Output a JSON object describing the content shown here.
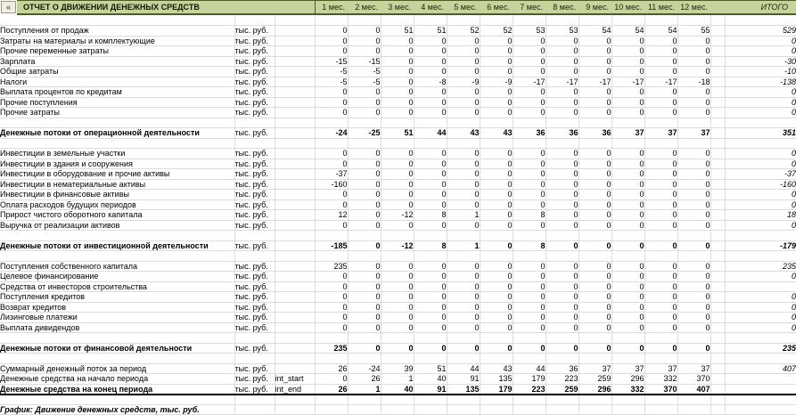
{
  "window": {
    "collapse_button": "«"
  },
  "header": {
    "title": "ОТЧЕТ О ДВИЖЕНИИ ДЕНЕЖНЫХ СРЕДСТВ",
    "month_labels": [
      "1 мес.",
      "2 мес.",
      "3 мес.",
      "4 мес.",
      "5 мес.",
      "6 мес.",
      "7 мес.",
      "8 мес.",
      "9 мес.",
      "10 мес.",
      "11 мес.",
      "12 мес."
    ],
    "total_label": "ИТОГО"
  },
  "colors": {
    "header_bg": "#c6d49b",
    "header_border": "#4c5c26",
    "grid_line": "#dcdcdc"
  },
  "rows": [
    {
      "type": "blank"
    },
    {
      "label": "Поступления от продаж",
      "units": "тыс. руб.",
      "var": "",
      "values": [
        0,
        0,
        51,
        51,
        52,
        52,
        53,
        53,
        54,
        54,
        54,
        55
      ],
      "total": "529"
    },
    {
      "label": "Затраты на материалы и комплектующие",
      "units": "тыс. руб.",
      "var": "",
      "values": [
        0,
        0,
        0,
        0,
        0,
        0,
        0,
        0,
        0,
        0,
        0,
        0
      ],
      "total": "0"
    },
    {
      "label": "Прочие переменные затраты",
      "units": "тыс. руб.",
      "var": "",
      "values": [
        0,
        0,
        0,
        0,
        0,
        0,
        0,
        0,
        0,
        0,
        0,
        0
      ],
      "total": "0"
    },
    {
      "label": "Зарплата",
      "units": "тыс. руб.",
      "var": "",
      "values": [
        -15,
        -15,
        0,
        0,
        0,
        0,
        0,
        0,
        0,
        0,
        0,
        0
      ],
      "total": "-30"
    },
    {
      "label": "Общие затраты",
      "units": "тыс. руб.",
      "var": "",
      "values": [
        -5,
        -5,
        0,
        0,
        0,
        0,
        0,
        0,
        0,
        0,
        0,
        0
      ],
      "total": "-10"
    },
    {
      "label": "Налоги",
      "units": "тыс. руб.",
      "var": "",
      "values": [
        -5,
        -5,
        0,
        -8,
        -9,
        -9,
        -17,
        -17,
        -17,
        -17,
        -17,
        -18
      ],
      "total": "-138"
    },
    {
      "label": "Выплата процентов по кредитам",
      "units": "тыс. руб.",
      "var": "",
      "values": [
        0,
        0,
        0,
        0,
        0,
        0,
        0,
        0,
        0,
        0,
        0,
        0
      ],
      "total": "0"
    },
    {
      "label": "Прочие поступления",
      "units": "тыс. руб.",
      "var": "",
      "values": [
        0,
        0,
        0,
        0,
        0,
        0,
        0,
        0,
        0,
        0,
        0,
        0
      ],
      "total": "0"
    },
    {
      "label": "Прочие затраты",
      "units": "тыс. руб.",
      "var": "",
      "values": [
        0,
        0,
        0,
        0,
        0,
        0,
        0,
        0,
        0,
        0,
        0,
        0
      ],
      "total": "0"
    },
    {
      "type": "blank"
    },
    {
      "label": "Денежные потоки от операционной деятельности",
      "units": "тыс. руб.",
      "var": "",
      "values": [
        -24,
        -25,
        51,
        44,
        43,
        43,
        36,
        36,
        36,
        37,
        37,
        37
      ],
      "total": "351",
      "bold": true
    },
    {
      "type": "blank"
    },
    {
      "label": "Инвестиции в земельные участки",
      "units": "тыс. руб.",
      "var": "",
      "values": [
        0,
        0,
        0,
        0,
        0,
        0,
        0,
        0,
        0,
        0,
        0,
        0
      ],
      "total": "0"
    },
    {
      "label": "Инвестиции в здания и сооружения",
      "units": "тыс. руб.",
      "var": "",
      "values": [
        0,
        0,
        0,
        0,
        0,
        0,
        0,
        0,
        0,
        0,
        0,
        0
      ],
      "total": "0"
    },
    {
      "label": "Инвестиции в оборудование и прочие активы",
      "units": "тыс. руб.",
      "var": "",
      "values": [
        -37,
        0,
        0,
        0,
        0,
        0,
        0,
        0,
        0,
        0,
        0,
        0
      ],
      "total": "-37"
    },
    {
      "label": "Инвестиции в нематериальные активы",
      "units": "тыс. руб.",
      "var": "",
      "values": [
        -160,
        0,
        0,
        0,
        0,
        0,
        0,
        0,
        0,
        0,
        0,
        0
      ],
      "total": "-160"
    },
    {
      "label": "Инвестиции в финансовые активы",
      "units": "тыс. руб.",
      "var": "",
      "values": [
        0,
        0,
        0,
        0,
        0,
        0,
        0,
        0,
        0,
        0,
        0,
        0
      ],
      "total": "0"
    },
    {
      "label": "Оплата расходов будущих периодов",
      "units": "тыс. руб.",
      "var": "",
      "values": [
        0,
        0,
        0,
        0,
        0,
        0,
        0,
        0,
        0,
        0,
        0,
        0
      ],
      "total": "0"
    },
    {
      "label": "Прирост чистого оборотного капитала",
      "units": "тыс. руб.",
      "var": "",
      "values": [
        12,
        0,
        -12,
        8,
        1,
        0,
        8,
        0,
        0,
        0,
        0,
        0
      ],
      "total": "18"
    },
    {
      "label": "Выручка от реализации активов",
      "units": "тыс. руб.",
      "var": "",
      "values": [
        0,
        0,
        0,
        0,
        0,
        0,
        0,
        0,
        0,
        0,
        0,
        0
      ],
      "total": "0"
    },
    {
      "type": "blank"
    },
    {
      "label": "Денежные потоки от инвестиционной деятельности",
      "units": "тыс. руб.",
      "var": "",
      "values": [
        -185,
        0,
        -12,
        8,
        1,
        0,
        8,
        0,
        0,
        0,
        0,
        0
      ],
      "total": "-179",
      "bold": true
    },
    {
      "type": "blank"
    },
    {
      "label": "Поступления собственного капитала",
      "units": "тыс. руб.",
      "var": "",
      "values": [
        235,
        0,
        0,
        0,
        0,
        0,
        0,
        0,
        0,
        0,
        0,
        0
      ],
      "total": "235"
    },
    {
      "label": "Целевое финансирование",
      "units": "тыс. руб.",
      "var": "",
      "values": [
        0,
        0,
        0,
        0,
        0,
        0,
        0,
        0,
        0,
        0,
        0,
        0
      ],
      "total": "0"
    },
    {
      "label": "Средства от инвесторов строительства",
      "units": "тыс. руб.",
      "var": "",
      "values": [
        0,
        0,
        0,
        0,
        0,
        0,
        0,
        0,
        0,
        0,
        0,
        0
      ],
      "total": ""
    },
    {
      "label": "Поступления кредитов",
      "units": "тыс. руб.",
      "var": "",
      "values": [
        0,
        0,
        0,
        0,
        0,
        0,
        0,
        0,
        0,
        0,
        0,
        0
      ],
      "total": "0"
    },
    {
      "label": "Возврат кредитов",
      "units": "тыс. руб.",
      "var": "",
      "values": [
        0,
        0,
        0,
        0,
        0,
        0,
        0,
        0,
        0,
        0,
        0,
        0
      ],
      "total": "0"
    },
    {
      "label": "Лизинговые платежи",
      "units": "тыс. руб.",
      "var": "",
      "values": [
        0,
        0,
        0,
        0,
        0,
        0,
        0,
        0,
        0,
        0,
        0,
        0
      ],
      "total": "0"
    },
    {
      "label": "Выплата дивидендов",
      "units": "тыс. руб.",
      "var": "",
      "values": [
        0,
        0,
        0,
        0,
        0,
        0,
        0,
        0,
        0,
        0,
        0,
        0
      ],
      "total": "0"
    },
    {
      "type": "blank"
    },
    {
      "label": "Денежные потоки от финансовой деятельности",
      "units": "тыс. руб.",
      "var": "",
      "values": [
        235,
        0,
        0,
        0,
        0,
        0,
        0,
        0,
        0,
        0,
        0,
        0
      ],
      "total": "235",
      "bold": true
    },
    {
      "type": "blank"
    },
    {
      "label": "Суммарный денежный поток за период",
      "units": "тыс. руб.",
      "var": "",
      "values": [
        26,
        -24,
        39,
        51,
        44,
        43,
        44,
        36,
        37,
        37,
        37,
        37
      ],
      "total": "407"
    },
    {
      "label": "Денежные средства на начало периода",
      "units": "тыс. руб.",
      "var": "int_start",
      "values": [
        0,
        26,
        1,
        40,
        91,
        135,
        179,
        223,
        259,
        296,
        332,
        370
      ],
      "total": ""
    },
    {
      "label": "Денежные средства на конец периода",
      "units": "тыс. руб.",
      "var": "int_end",
      "values": [
        26,
        1,
        40,
        91,
        135,
        179,
        223,
        259,
        296,
        332,
        370,
        407
      ],
      "total": "",
      "bold": true,
      "thick": true
    },
    {
      "type": "blank"
    },
    {
      "type": "note",
      "label": "График: Движение денежных средств, тыс. руб."
    }
  ]
}
